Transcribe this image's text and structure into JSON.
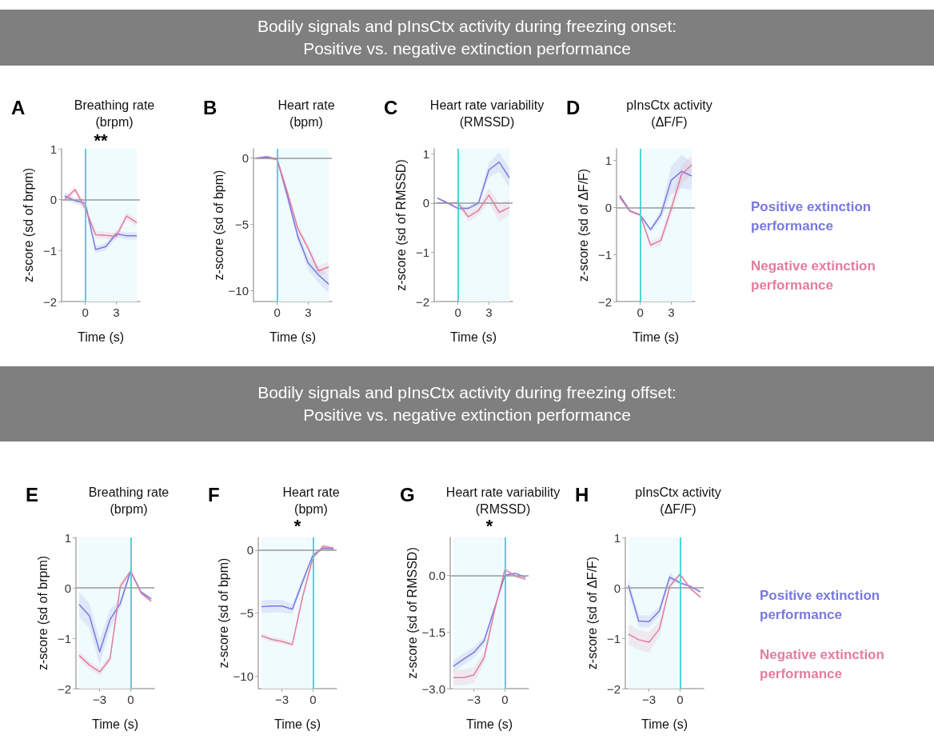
{
  "chart_data": [
    {
      "type": "other",
      "title": "Bodily signals and pInsCtx activity during freezing onset:\nPositive vs. negative extinction performance"
    },
    {
      "type": "line",
      "title": "Breathing rate\n(brpm)",
      "annotations": [
        "A",
        "**"
      ],
      "xlabel": "Time (s)",
      "ylabel": "z-score (sd of brpm)",
      "x": [
        -2,
        -1,
        0,
        1,
        2,
        3,
        4,
        5
      ],
      "xlim": [
        -2.3,
        5.3
      ],
      "xticks": [
        0,
        3
      ],
      "ylim": [
        -2,
        1
      ],
      "yticks": [
        -2,
        -1,
        0,
        1
      ],
      "marker": "none",
      "line_style": "solid",
      "grid": false,
      "legend": false,
      "ref_lines": [
        {
          "axis": "x",
          "value": 0,
          "color": "#4fd6d6"
        },
        {
          "axis": "y",
          "value": 0,
          "color": "#9a9a9a"
        }
      ],
      "bands": [
        {
          "axis": "x",
          "from": 0,
          "to": 5,
          "color": "#effbfd"
        }
      ],
      "series": [
        {
          "color": "#7878e0",
          "values": [
            0.07,
            -0.02,
            -0.07,
            -0.98,
            -0.92,
            -0.67,
            -0.71,
            -0.71
          ],
          "lower": [
            0.0,
            -0.09,
            -0.14,
            -1.05,
            -0.99,
            -0.74,
            -0.78,
            -0.78
          ],
          "upper": [
            0.14,
            0.05,
            0.0,
            -0.91,
            -0.85,
            -0.6,
            -0.64,
            -0.64
          ]
        },
        {
          "color": "#e47c9c",
          "values": [
            0.0,
            0.2,
            -0.17,
            -0.69,
            -0.7,
            -0.72,
            -0.32,
            -0.45
          ],
          "lower": [
            -0.07,
            0.13,
            -0.24,
            -0.76,
            -0.77,
            -0.79,
            -0.39,
            -0.52
          ],
          "upper": [
            0.07,
            0.27,
            -0.1,
            -0.62,
            -0.63,
            -0.65,
            -0.25,
            -0.38
          ]
        }
      ]
    },
    {
      "type": "line",
      "title": "Heart rate\n(bpm)",
      "annotations": [
        "B"
      ],
      "xlabel": "Time (s)",
      "ylabel": "z-score (sd of bpm)",
      "x": [
        -2,
        -1,
        0,
        1,
        2,
        3,
        4,
        5
      ],
      "xlim": [
        -2.3,
        5.3
      ],
      "xticks": [
        0,
        3
      ],
      "ylim": [
        -10.8,
        0.7
      ],
      "yticks": [
        -10,
        -5,
        0
      ],
      "marker": "none",
      "line_style": "solid",
      "grid": false,
      "legend": false,
      "ref_lines": [
        {
          "axis": "x",
          "value": 0,
          "color": "#4fd6d6"
        },
        {
          "axis": "y",
          "value": 0,
          "color": "#9a9a9a"
        }
      ],
      "bands": [
        {
          "axis": "x",
          "from": 0,
          "to": 5,
          "color": "#effbfd"
        }
      ],
      "series": [
        {
          "color": "#7878e0",
          "values": [
            0,
            0.1,
            -0.1,
            -2.9,
            -5.9,
            -7.9,
            -8.8,
            -9.5
          ],
          "lower": [
            -0.1,
            0,
            -0.2,
            -3.2,
            -6.3,
            -8.4,
            -9.4,
            -10.2
          ],
          "upper": [
            0.1,
            0.2,
            0,
            -2.6,
            -5.5,
            -7.4,
            -8.2,
            -8.8
          ]
        },
        {
          "color": "#e47c9c",
          "values": [
            0,
            0,
            -0.1,
            -2.6,
            -5.3,
            -6.8,
            -8.5,
            -8.2
          ],
          "lower": [
            -0.1,
            -0.1,
            -0.2,
            -2.8,
            -5.6,
            -7.1,
            -8.9,
            -8.6
          ],
          "upper": [
            0.1,
            0.1,
            0,
            -2.4,
            -5.0,
            -6.5,
            -8.1,
            -7.8
          ]
        }
      ]
    },
    {
      "type": "line",
      "title": "Heart rate variability\n(RMSSD)",
      "annotations": [
        "C"
      ],
      "xlabel": "Time (s)",
      "ylabel": "z-score (sd of RMSSD)",
      "x": [
        -2,
        -1,
        0,
        1,
        2,
        3,
        4,
        5
      ],
      "xlim": [
        -2.3,
        5.3
      ],
      "xticks": [
        0,
        3
      ],
      "ylim": [
        -2,
        1.1
      ],
      "yticks": [
        -2,
        -1,
        0,
        1
      ],
      "marker": "none",
      "line_style": "solid",
      "grid": false,
      "legend": false,
      "ref_lines": [
        {
          "axis": "x",
          "value": 0,
          "color": "#4fd6d6"
        },
        {
          "axis": "y",
          "value": 0,
          "color": "#9a9a9a"
        }
      ],
      "bands": [
        {
          "axis": "x",
          "from": 0,
          "to": 5,
          "color": "#effbfd"
        }
      ],
      "series": [
        {
          "color": "#7878e0",
          "values": [
            0.1,
            0,
            -0.11,
            -0.11,
            0,
            0.67,
            0.83,
            0.51
          ],
          "lower": [
            0.07,
            -0.03,
            -0.14,
            -0.16,
            -0.05,
            0.52,
            0.63,
            0.31
          ],
          "upper": [
            0.13,
            0.03,
            -0.08,
            -0.06,
            0.05,
            0.82,
            1.03,
            0.71
          ]
        },
        {
          "color": "#e47c9c",
          "values": [
            0,
            0,
            0,
            -0.28,
            -0.15,
            0.16,
            -0.19,
            -0.09
          ],
          "lower": [
            -0.02,
            -0.02,
            -0.05,
            -0.38,
            -0.25,
            0.01,
            -0.39,
            -0.24
          ],
          "upper": [
            0.02,
            0.02,
            0.05,
            -0.18,
            -0.05,
            0.31,
            0.01,
            0.06
          ]
        }
      ]
    },
    {
      "type": "line",
      "title": "pInsCtx activity\n(ΔF/F)",
      "annotations": [
        "D"
      ],
      "xlabel": "Time (s)",
      "ylabel": "z-score (sd of ΔF/F)",
      "x": [
        -2,
        -1,
        0,
        1,
        2,
        3,
        4,
        5
      ],
      "xlim": [
        -2.3,
        5.3
      ],
      "xticks": [
        0,
        3
      ],
      "ylim": [
        -2,
        1.25
      ],
      "yticks": [
        -2,
        -1,
        0,
        1
      ],
      "marker": "none",
      "line_style": "solid",
      "grid": false,
      "legend": "right",
      "ref_lines": [
        {
          "axis": "x",
          "value": 0,
          "color": "#4fd6d6"
        },
        {
          "axis": "y",
          "value": 0,
          "color": "#9a9a9a"
        }
      ],
      "bands": [
        {
          "axis": "x",
          "from": 0,
          "to": 5,
          "color": "#effbfd"
        }
      ],
      "series": [
        {
          "name": "Positive extinction performance",
          "color": "#7878e0",
          "values": [
            0.26,
            -0.07,
            -0.16,
            -0.47,
            -0.15,
            0.58,
            0.77,
            0.67
          ],
          "lower": [
            0.23,
            -0.1,
            -0.19,
            -0.52,
            -0.25,
            0.28,
            0.42,
            0.37
          ],
          "upper": [
            0.29,
            -0.04,
            -0.13,
            -0.42,
            -0.05,
            0.88,
            1.12,
            0.97
          ]
        },
        {
          "name": "Negative extinction performance",
          "color": "#e47c9c",
          "values": [
            0.22,
            -0.08,
            -0.16,
            -0.8,
            -0.7,
            -0.03,
            0.7,
            0.91
          ],
          "lower": [
            0.19,
            -0.11,
            -0.19,
            -0.88,
            -0.8,
            -0.18,
            0.5,
            0.71
          ],
          "upper": [
            0.25,
            -0.05,
            -0.13,
            -0.72,
            -0.6,
            0.12,
            0.9,
            1.11
          ]
        }
      ]
    },
    {
      "type": "other",
      "title": "Bodily signals and pInsCtx activity during freezing offset:\nPositive vs. negative extinction performance"
    },
    {
      "type": "line",
      "title": "Breathing rate\n(brpm)",
      "annotations": [
        "E"
      ],
      "xlabel": "Time (s)",
      "ylabel": "z-score (sd of brpm)",
      "x": [
        -5,
        -4,
        -3,
        -2,
        -1,
        0,
        1,
        2
      ],
      "xlim": [
        -5.3,
        2.3
      ],
      "xticks": [
        -3,
        0
      ],
      "ylim": [
        -2,
        1
      ],
      "yticks": [
        -2,
        -1,
        0,
        1
      ],
      "marker": "none",
      "line_style": "solid",
      "grid": false,
      "legend": false,
      "ref_lines": [
        {
          "axis": "x",
          "value": 0,
          "color": "#4fd6d6"
        },
        {
          "axis": "y",
          "value": 0,
          "color": "#9a9a9a"
        }
      ],
      "bands": [
        {
          "axis": "x",
          "from": -5,
          "to": 0,
          "color": "#effbfd"
        }
      ],
      "series": [
        {
          "color": "#7878e0",
          "values": [
            -0.33,
            -0.55,
            -1.27,
            -0.63,
            -0.31,
            0.33,
            -0.08,
            -0.22
          ],
          "lower": [
            -0.58,
            -0.8,
            -1.52,
            -0.83,
            -0.41,
            0.28,
            -0.11,
            -0.25
          ],
          "upper": [
            -0.08,
            -0.3,
            -1.02,
            -0.43,
            -0.21,
            0.38,
            -0.05,
            -0.19
          ]
        },
        {
          "color": "#e47c9c",
          "values": [
            -1.34,
            -1.53,
            -1.67,
            -1.41,
            0.03,
            0.33,
            -0.1,
            -0.27
          ],
          "lower": [
            -1.42,
            -1.61,
            -1.75,
            -1.49,
            -0.05,
            0.28,
            -0.13,
            -0.3
          ],
          "upper": [
            -1.26,
            -1.45,
            -1.59,
            -1.33,
            0.11,
            0.38,
            -0.07,
            -0.24
          ]
        }
      ]
    },
    {
      "type": "line",
      "title": "Heart rate\n(bpm)",
      "annotations": [
        "F",
        "*"
      ],
      "xlabel": "Time (s)",
      "ylabel": "z-score (sd of bpm)",
      "x": [
        -5,
        -4,
        -3,
        -2,
        -1,
        0,
        1,
        2
      ],
      "xlim": [
        -5.3,
        2.3
      ],
      "xticks": [
        -3,
        0
      ],
      "ylim": [
        -11,
        1
      ],
      "yticks": [
        -10,
        -5,
        0
      ],
      "marker": "none",
      "line_style": "solid",
      "grid": false,
      "legend": false,
      "ref_lines": [
        {
          "axis": "x",
          "value": 0,
          "color": "#4fd6d6"
        },
        {
          "axis": "y",
          "value": 0,
          "color": "#9a9a9a"
        }
      ],
      "bands": [
        {
          "axis": "x",
          "from": -5,
          "to": 0,
          "color": "#effbfd"
        }
      ],
      "series": [
        {
          "color": "#7878e0",
          "values": [
            -4.5,
            -4.45,
            -4.45,
            -4.7,
            -2.5,
            -0.4,
            0.15,
            0.1
          ],
          "lower": [
            -5.0,
            -4.95,
            -4.95,
            -5.1,
            -2.8,
            -0.5,
            0.05,
            0
          ],
          "upper": [
            -4.0,
            -3.95,
            -3.95,
            -4.3,
            -2.2,
            -0.3,
            0.25,
            0.2
          ]
        },
        {
          "color": "#e47c9c",
          "values": [
            -6.8,
            -7.1,
            -7.25,
            -7.5,
            -3.7,
            -0.6,
            0.3,
            0.15
          ],
          "lower": [
            -7.0,
            -7.3,
            -7.45,
            -7.7,
            -3.9,
            -0.8,
            0.1,
            -0.05
          ],
          "upper": [
            -6.6,
            -6.9,
            -7.05,
            -7.3,
            -3.5,
            -0.4,
            0.5,
            0.35
          ]
        }
      ]
    },
    {
      "type": "line",
      "title": "Heart rate variability\n(RMSSD)",
      "annotations": [
        "G",
        "*"
      ],
      "xlabel": "Time (s)",
      "ylabel": "z-score (sd of RMSSD)",
      "x": [
        -5,
        -4,
        -3,
        -2,
        -1,
        0,
        1,
        2
      ],
      "xlim": [
        -5.3,
        2.3
      ],
      "xticks": [
        -3,
        0
      ],
      "ylim": [
        -3,
        1
      ],
      "yticks": [
        {
          "value": -3,
          "label": "−3.0"
        },
        {
          "value": -1.5,
          "label": "−1.5"
        },
        {
          "value": 0,
          "label": "0.0"
        }
      ],
      "marker": "none",
      "line_style": "solid",
      "grid": false,
      "legend": false,
      "ref_lines": [
        {
          "axis": "x",
          "value": 0,
          "color": "#4fd6d6"
        },
        {
          "axis": "y",
          "value": 0,
          "color": "#9a9a9a"
        }
      ],
      "bands": [
        {
          "axis": "x",
          "from": -5,
          "to": 0,
          "color": "#effbfd"
        }
      ],
      "series": [
        {
          "color": "#7878e0",
          "values": [
            -2.41,
            -2.22,
            -2.04,
            -1.73,
            -0.87,
            0,
            0.05,
            -0.05
          ],
          "lower": [
            -2.56,
            -2.37,
            -2.19,
            -1.83,
            -0.92,
            -0.03,
            0.02,
            -0.08
          ],
          "upper": [
            -2.26,
            -2.07,
            -1.89,
            -1.63,
            -0.82,
            0.03,
            0.08,
            -0.02
          ]
        },
        {
          "color": "#e47c9c",
          "values": [
            -2.71,
            -2.71,
            -2.64,
            -2.17,
            -0.94,
            0.15,
            -0.02,
            -0.1
          ],
          "lower": [
            -2.91,
            -2.91,
            -2.84,
            -2.32,
            -0.99,
            0.12,
            -0.05,
            -0.13
          ],
          "upper": [
            -2.51,
            -2.51,
            -2.44,
            -2.02,
            -0.89,
            0.18,
            0.01,
            -0.07
          ]
        }
      ]
    },
    {
      "type": "line",
      "title": "pInsCtx activity\n(ΔF/F)",
      "annotations": [
        "H"
      ],
      "xlabel": "Time (s)",
      "ylabel": "z-score (sd of ΔF/F)",
      "x": [
        -5,
        -4,
        -3,
        -2,
        -1,
        0,
        1,
        2
      ],
      "xlim": [
        -5.3,
        2.3
      ],
      "xticks": [
        -3,
        0
      ],
      "ylim": [
        -2,
        1
      ],
      "yticks": [
        -2,
        -1,
        0,
        1
      ],
      "marker": "none",
      "line_style": "solid",
      "grid": false,
      "legend": "right",
      "ref_lines": [
        {
          "axis": "x",
          "value": 0,
          "color": "#4fd6d6"
        },
        {
          "axis": "y",
          "value": 0,
          "color": "#9a9a9a"
        }
      ],
      "bands": [
        {
          "axis": "x",
          "from": -5,
          "to": 0,
          "color": "#effbfd"
        }
      ],
      "series": [
        {
          "name": "Positive extinction performance",
          "color": "#7878e0",
          "values": [
            0.05,
            -0.66,
            -0.67,
            -0.46,
            0.21,
            0.1,
            0.03,
            -0.08
          ],
          "lower": [
            -0.07,
            -0.78,
            -0.79,
            -0.56,
            0.13,
            0.07,
            0,
            -0.11
          ],
          "upper": [
            0.17,
            -0.54,
            -0.55,
            -0.36,
            0.29,
            0.13,
            0.06,
            -0.05
          ]
        },
        {
          "name": "Negative extinction performance",
          "color": "#e47c9c",
          "values": [
            -0.92,
            -1.03,
            -1.08,
            -0.82,
            0.03,
            0.27,
            -0.01,
            -0.19
          ],
          "lower": [
            -1.12,
            -1.23,
            -1.28,
            -0.97,
            -0.02,
            0.24,
            -0.04,
            -0.22
          ],
          "upper": [
            -0.72,
            -0.83,
            -0.88,
            -0.67,
            0.08,
            0.3,
            0.02,
            -0.16
          ]
        }
      ]
    }
  ]
}
